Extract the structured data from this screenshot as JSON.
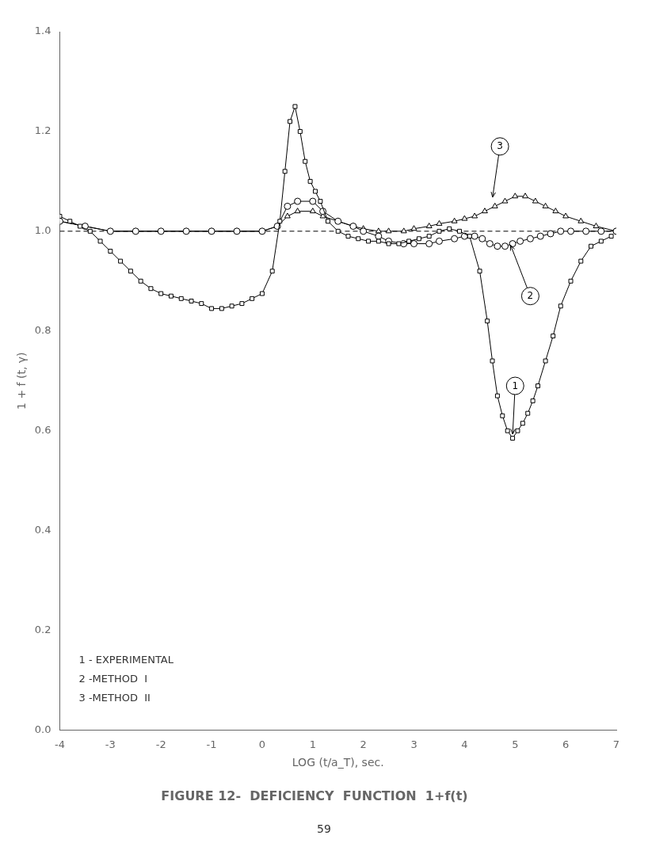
{
  "chart_data": {
    "type": "line",
    "title": "FIGURE 12-  DEFICIENCY  FUNCTION  1+f(t)",
    "xlabel": "LOG (t/a_T), sec.",
    "ylabel": "1 + f (t, γ)",
    "xlim": [
      -4,
      7
    ],
    "ylim": [
      0,
      1.4
    ],
    "xticks": [
      -4,
      -3,
      -2,
      -1,
      0,
      1,
      2,
      3,
      4,
      5,
      6,
      7
    ],
    "yticks": [
      {
        "value": 0,
        "label": "0.0"
      },
      0.2,
      0.4,
      0.6,
      0.8,
      {
        "value": 1.0,
        "label": "1.0"
      },
      1.2,
      1.4
    ],
    "grid": false,
    "legend": "lower left",
    "series": [
      {
        "name": "1 - EXPERIMENTAL",
        "color": "#000000",
        "marker": "square",
        "line_style": "solid",
        "x": [
          -4.0,
          -3.8,
          -3.6,
          -3.4,
          -3.2,
          -3.0,
          -2.8,
          -2.6,
          -2.4,
          -2.2,
          -2.0,
          -1.8,
          -1.6,
          -1.4,
          -1.2,
          -1.0,
          -0.8,
          -0.6,
          -0.4,
          -0.2,
          0.0,
          0.2,
          0.35,
          0.45,
          0.55,
          0.65,
          0.75,
          0.85,
          0.95,
          1.05,
          1.15,
          1.3,
          1.5,
          1.7,
          1.9,
          2.1,
          2.3,
          2.5,
          2.7,
          2.9,
          3.1,
          3.3,
          3.5,
          3.7,
          3.9,
          4.1,
          4.3,
          4.45,
          4.55,
          4.65,
          4.75,
          4.85,
          4.95,
          5.05,
          5.15,
          5.25,
          5.35,
          5.45,
          5.6,
          5.75,
          5.9,
          6.1,
          6.3,
          6.5,
          6.7,
          6.9
        ],
        "values": [
          1.03,
          1.02,
          1.01,
          1.0,
          0.98,
          0.96,
          0.94,
          0.92,
          0.9,
          0.885,
          0.875,
          0.87,
          0.865,
          0.86,
          0.855,
          0.845,
          0.845,
          0.85,
          0.855,
          0.865,
          0.875,
          0.92,
          1.02,
          1.12,
          1.22,
          1.25,
          1.2,
          1.14,
          1.1,
          1.08,
          1.06,
          1.02,
          1.0,
          0.99,
          0.985,
          0.98,
          0.98,
          0.975,
          0.975,
          0.98,
          0.985,
          0.99,
          1.0,
          1.005,
          1.0,
          0.99,
          0.92,
          0.82,
          0.74,
          0.67,
          0.63,
          0.6,
          0.585,
          0.6,
          0.615,
          0.635,
          0.66,
          0.69,
          0.74,
          0.79,
          0.85,
          0.9,
          0.94,
          0.97,
          0.98,
          0.99
        ]
      },
      {
        "name": "2 -METHOD  I",
        "color": "#000000",
        "marker": "circle",
        "line_style": "solid",
        "x": [
          -4.0,
          -3.5,
          -3.0,
          -2.5,
          -2.0,
          -1.5,
          -1.0,
          -0.5,
          0.0,
          0.3,
          0.5,
          0.7,
          1.0,
          1.2,
          1.5,
          1.8,
          2.0,
          2.3,
          2.5,
          2.8,
          3.0,
          3.3,
          3.5,
          3.8,
          4.0,
          4.2,
          4.35,
          4.5,
          4.65,
          4.8,
          4.95,
          5.1,
          5.3,
          5.5,
          5.7,
          5.9,
          6.1,
          6.4,
          6.7,
          7.0
        ],
        "values": [
          1.02,
          1.01,
          1.0,
          1.0,
          1.0,
          1.0,
          1.0,
          1.0,
          1.0,
          1.01,
          1.05,
          1.06,
          1.06,
          1.04,
          1.02,
          1.01,
          1.0,
          0.99,
          0.98,
          0.975,
          0.975,
          0.975,
          0.98,
          0.985,
          0.99,
          0.99,
          0.985,
          0.975,
          0.97,
          0.97,
          0.975,
          0.98,
          0.985,
          0.99,
          0.995,
          1.0,
          1.0,
          1.0,
          1.0,
          1.0
        ]
      },
      {
        "name": "3 -METHOD  II",
        "color": "#000000",
        "marker": "triangle",
        "line_style": "solid",
        "x": [
          -4.0,
          -3.5,
          -3.0,
          -2.5,
          -2.0,
          -1.5,
          -1.0,
          -0.5,
          0.0,
          0.3,
          0.5,
          0.7,
          1.0,
          1.2,
          1.5,
          1.8,
          2.0,
          2.3,
          2.5,
          2.8,
          3.0,
          3.3,
          3.5,
          3.8,
          4.0,
          4.2,
          4.4,
          4.6,
          4.8,
          5.0,
          5.2,
          5.4,
          5.6,
          5.8,
          6.0,
          6.3,
          6.6,
          7.0
        ],
        "values": [
          1.02,
          1.01,
          1.0,
          1.0,
          1.0,
          1.0,
          1.0,
          1.0,
          1.0,
          1.01,
          1.03,
          1.04,
          1.04,
          1.03,
          1.02,
          1.01,
          1.005,
          1.0,
          1.0,
          1.0,
          1.005,
          1.01,
          1.015,
          1.02,
          1.025,
          1.03,
          1.04,
          1.05,
          1.06,
          1.07,
          1.07,
          1.06,
          1.05,
          1.04,
          1.03,
          1.02,
          1.01,
          1.0
        ]
      }
    ],
    "reference_lines": [
      {
        "y": 1.0,
        "color": "#000000",
        "line_style": "dashed"
      }
    ],
    "annotations": [
      {
        "text": "1",
        "x": 5.0,
        "y": 0.69,
        "arrow_x": 4.95,
        "arrow_y": 0.59
      },
      {
        "text": "2",
        "x": 5.3,
        "y": 0.87,
        "arrow_x": 4.9,
        "arrow_y": 0.975
      },
      {
        "text": "3",
        "x": 4.7,
        "y": 1.17,
        "arrow_x": 4.55,
        "arrow_y": 1.065
      },
      {
        "text": "59"
      }
    ]
  }
}
